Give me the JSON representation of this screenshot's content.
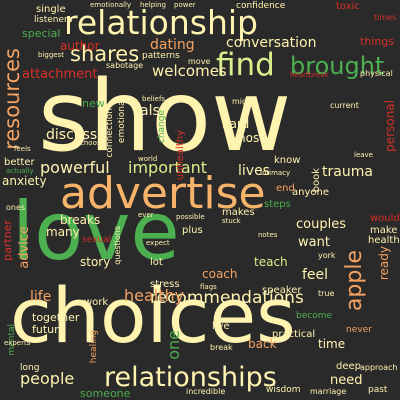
{
  "words": [
    {
      "text": "show",
      "color": "#fff3b0"
    },
    {
      "text": "choices",
      "color": "#fff3b0"
    },
    {
      "text": "love",
      "color": "#4caf50"
    },
    {
      "text": "advertise",
      "color": "#f7b36a"
    },
    {
      "text": "relationship",
      "color": "#fff3b0"
    },
    {
      "text": "relationships",
      "color": "#fff3b0"
    },
    {
      "text": "find",
      "color": "#d9ef8b"
    },
    {
      "text": "shares",
      "color": "#fff3b0"
    },
    {
      "text": "brought",
      "color": "#4caf50"
    },
    {
      "text": "resources",
      "color": "#f4a261"
    },
    {
      "text": "recommendations",
      "color": "#fff3b0"
    },
    {
      "text": "apple",
      "color": "#f4a261"
    },
    {
      "text": "advice",
      "color": "#f4a261"
    },
    {
      "text": "people",
      "color": "#fff3b0"
    },
    {
      "text": "healthy",
      "color": "#f4a261"
    },
    {
      "text": "conversation",
      "color": "#fff3b0"
    },
    {
      "text": "welcomes",
      "color": "#fff3b0"
    },
    {
      "text": "important",
      "color": "#d9ef8b"
    },
    {
      "text": "powerful",
      "color": "#fff3b0"
    },
    {
      "text": "trauma",
      "color": "#fff3b0"
    },
    {
      "text": "dating",
      "color": "#f4a261"
    },
    {
      "text": "attachment",
      "color": "#d73027"
    },
    {
      "text": "author",
      "color": "#d73027"
    },
    {
      "text": "discuss",
      "color": "#fff3b0"
    },
    {
      "text": "anxiety",
      "color": "#fff3b0"
    },
    {
      "text": "lives",
      "color": "#fff3b0"
    },
    {
      "text": "feel",
      "color": "#fff3b0"
    },
    {
      "text": "coach",
      "color": "#f4a261"
    },
    {
      "text": "want",
      "color": "#fff3b0"
    },
    {
      "text": "couples",
      "color": "#fff3b0"
    },
    {
      "text": "teach",
      "color": "#d9ef8b"
    },
    {
      "text": "story",
      "color": "#fff3b0"
    },
    {
      "text": "life",
      "color": "#f4a261"
    },
    {
      "text": "need",
      "color": "#fff3b0"
    },
    {
      "text": "time",
      "color": "#fff3b0"
    },
    {
      "text": "one",
      "color": "#4caf50"
    },
    {
      "text": "back",
      "color": "#f4a261"
    },
    {
      "text": "also",
      "color": "#fff3b0"
    },
    {
      "text": "hard",
      "color": "#fff3b0"
    },
    {
      "text": "host",
      "color": "#fff3b0"
    },
    {
      "text": "breaks",
      "color": "#fff3b0"
    },
    {
      "text": "many",
      "color": "#fff3b0"
    },
    {
      "text": "personal",
      "color": "#d73027"
    },
    {
      "text": "ready",
      "color": "#f4a261"
    },
    {
      "text": "partner",
      "color": "#d73027"
    },
    {
      "text": "special",
      "color": "#4caf50"
    },
    {
      "text": "things",
      "color": "#d73027"
    },
    {
      "text": "new",
      "color": "#4caf50"
    },
    {
      "text": "someone",
      "color": "#4caf50"
    },
    {
      "text": "together",
      "color": "#fff3b0"
    },
    {
      "text": "future",
      "color": "#fff3b0"
    },
    {
      "text": "work",
      "color": "#fff3b0"
    },
    {
      "text": "stress",
      "color": "#fff3b0"
    },
    {
      "text": "speaker",
      "color": "#fff3b0"
    },
    {
      "text": "live",
      "color": "#fff3b0"
    },
    {
      "text": "deep",
      "color": "#fff3b0"
    },
    {
      "text": "practical",
      "color": "#fff3b0"
    },
    {
      "text": "lot",
      "color": "#fff3b0"
    },
    {
      "text": "plus",
      "color": "#fff3b0"
    },
    {
      "text": "make",
      "color": "#fff3b0"
    },
    {
      "text": "would",
      "color": "#d73027"
    },
    {
      "text": "health",
      "color": "#fff3b0"
    },
    {
      "text": "know",
      "color": "#fff3b0"
    },
    {
      "text": "anyone",
      "color": "#fff3b0"
    },
    {
      "text": "makes",
      "color": "#fff3b0"
    },
    {
      "text": "steps",
      "color": "#4caf50"
    },
    {
      "text": "book",
      "color": "#fff3b0"
    },
    {
      "text": "end",
      "color": "#f4a261"
    },
    {
      "text": "better",
      "color": "#fff3b0"
    },
    {
      "text": "single",
      "color": "#fff3b0"
    },
    {
      "text": "listeners",
      "color": "#fff3b0"
    },
    {
      "text": "patterns",
      "color": "#fff3b0"
    },
    {
      "text": "move",
      "color": "#fff3b0"
    },
    {
      "text": "confidence",
      "color": "#fff3b0"
    },
    {
      "text": "toxic",
      "color": "#d73027"
    },
    {
      "text": "emotional",
      "color": "#fff3b0"
    },
    {
      "text": "connection",
      "color": "#fff3b0"
    },
    {
      "text": "unhealthy",
      "color": "#d73027"
    },
    {
      "text": "change",
      "color": "#4caf50"
    },
    {
      "text": "sexual",
      "color": "#d73027"
    },
    {
      "text": "ones",
      "color": "#fff3b0"
    },
    {
      "text": "questions",
      "color": "#fff3b0"
    },
    {
      "text": "mental",
      "color": "#4caf50"
    },
    {
      "text": "healing",
      "color": "#f4a261"
    },
    {
      "text": "become",
      "color": "#4caf50"
    },
    {
      "text": "marriage",
      "color": "#fff3b0"
    },
    {
      "text": "approach",
      "color": "#fff3b0"
    },
    {
      "text": "never",
      "color": "#f4a261"
    },
    {
      "text": "past",
      "color": "#fff3b0"
    },
    {
      "text": "long",
      "color": "#fff3b0"
    },
    {
      "text": "wisdom",
      "color": "#fff3b0"
    },
    {
      "text": "incredible",
      "color": "#fff3b0"
    },
    {
      "text": "break",
      "color": "#fff3b0"
    },
    {
      "text": "might",
      "color": "#fff3b0"
    },
    {
      "text": "current",
      "color": "#fff3b0"
    },
    {
      "text": "physical",
      "color": "#fff3b0"
    },
    {
      "text": "sabotage",
      "color": "#fff3b0"
    },
    {
      "text": "helping",
      "color": "#fff3b0"
    },
    {
      "text": "emotionally",
      "color": "#fff3b0"
    },
    {
      "text": "times",
      "color": "#d73027"
    },
    {
      "text": "biggest",
      "color": "#fff3b0"
    },
    {
      "text": "heartbreak",
      "color": "#d73027"
    },
    {
      "text": "world",
      "color": "#fff3b0"
    },
    {
      "text": "possible",
      "color": "#fff3b0"
    },
    {
      "text": "ever",
      "color": "#fff3b0"
    },
    {
      "text": "stuck",
      "color": "#fff3b0"
    },
    {
      "text": "notes",
      "color": "#fff3b0"
    },
    {
      "text": "york",
      "color": "#fff3b0"
    },
    {
      "text": "true",
      "color": "#fff3b0"
    },
    {
      "text": "flags",
      "color": "#fff3b0"
    },
    {
      "text": "choose",
      "color": "#fff3b0"
    },
    {
      "text": "actually",
      "color": "#4caf50"
    },
    {
      "text": "beliefs",
      "color": "#fff3b0"
    },
    {
      "text": "feels",
      "color": "#fff3b0"
    },
    {
      "text": "leave",
      "color": "#fff3b0"
    },
    {
      "text": "power",
      "color": "#fff3b0"
    },
    {
      "text": "intimacy",
      "color": "#fff3b0"
    },
    {
      "text": "expect",
      "color": "#fff3b0"
    },
    {
      "text": "experts",
      "color": "#fff3b0"
    }
  ]
}
